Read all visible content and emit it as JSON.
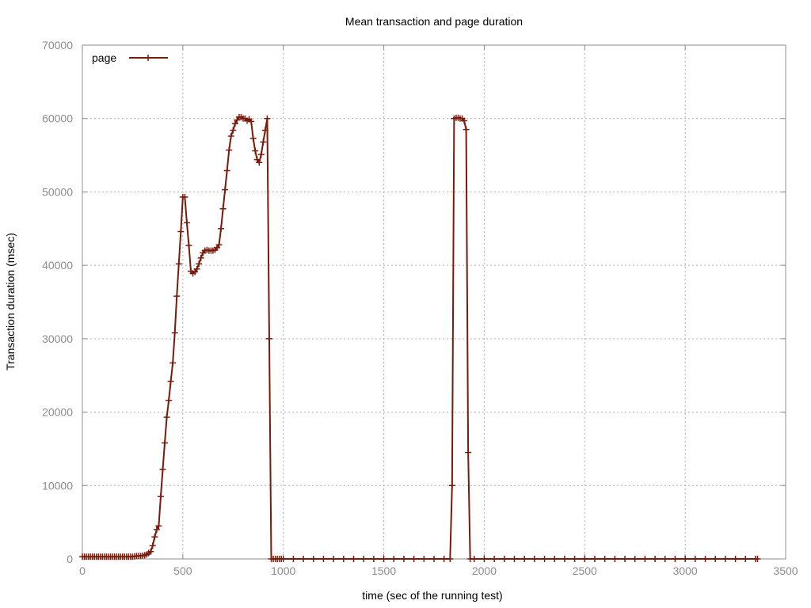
{
  "chart_data": {
    "type": "line",
    "title": "Mean transaction and page duration",
    "xlabel": "time (sec of the running test)",
    "ylabel": "Transaction duration (msec)",
    "xlim": [
      0,
      3500
    ],
    "ylim": [
      0,
      70000
    ],
    "xticks": [
      0,
      500,
      1000,
      1500,
      2000,
      2500,
      3000,
      3500
    ],
    "yticks": [
      0,
      10000,
      20000,
      30000,
      40000,
      50000,
      60000,
      70000
    ],
    "grid": true,
    "legend_position": "top-left",
    "series": [
      {
        "name": "page",
        "color": "#7a1a0a",
        "marker": "plus",
        "points": [
          [
            0,
            300
          ],
          [
            10,
            300
          ],
          [
            20,
            300
          ],
          [
            30,
            300
          ],
          [
            40,
            300
          ],
          [
            50,
            300
          ],
          [
            60,
            300
          ],
          [
            70,
            300
          ],
          [
            80,
            300
          ],
          [
            90,
            300
          ],
          [
            100,
            300
          ],
          [
            110,
            300
          ],
          [
            120,
            300
          ],
          [
            130,
            300
          ],
          [
            140,
            300
          ],
          [
            150,
            300
          ],
          [
            160,
            300
          ],
          [
            170,
            300
          ],
          [
            180,
            300
          ],
          [
            190,
            300
          ],
          [
            200,
            300
          ],
          [
            210,
            300
          ],
          [
            220,
            300
          ],
          [
            230,
            300
          ],
          [
            240,
            300
          ],
          [
            250,
            300
          ],
          [
            260,
            350
          ],
          [
            270,
            400
          ],
          [
            280,
            400
          ],
          [
            290,
            400
          ],
          [
            300,
            450
          ],
          [
            310,
            500
          ],
          [
            320,
            600
          ],
          [
            330,
            800
          ],
          [
            340,
            1000
          ],
          [
            350,
            1800
          ],
          [
            360,
            3000
          ],
          [
            370,
            4000
          ],
          [
            380,
            4500
          ],
          [
            390,
            8500
          ],
          [
            400,
            12200
          ],
          [
            410,
            15800
          ],
          [
            420,
            19300
          ],
          [
            430,
            21600
          ],
          [
            440,
            24200
          ],
          [
            450,
            26700
          ],
          [
            460,
            30800
          ],
          [
            470,
            35800
          ],
          [
            480,
            40200
          ],
          [
            490,
            44600
          ],
          [
            500,
            49300
          ],
          [
            510,
            49300
          ],
          [
            520,
            45800
          ],
          [
            530,
            42700
          ],
          [
            540,
            39200
          ],
          [
            550,
            38900
          ],
          [
            560,
            39100
          ],
          [
            570,
            39500
          ],
          [
            580,
            40200
          ],
          [
            590,
            41000
          ],
          [
            600,
            41700
          ],
          [
            610,
            42000
          ],
          [
            620,
            42100
          ],
          [
            630,
            42000
          ],
          [
            640,
            42000
          ],
          [
            650,
            42000
          ],
          [
            660,
            42100
          ],
          [
            670,
            42400
          ],
          [
            680,
            42800
          ],
          [
            690,
            45000
          ],
          [
            700,
            47700
          ],
          [
            710,
            50300
          ],
          [
            720,
            52900
          ],
          [
            730,
            55700
          ],
          [
            740,
            57600
          ],
          [
            750,
            58400
          ],
          [
            760,
            59300
          ],
          [
            770,
            59800
          ],
          [
            780,
            60200
          ],
          [
            790,
            60200
          ],
          [
            800,
            60000
          ],
          [
            810,
            60000
          ],
          [
            820,
            59700
          ],
          [
            830,
            59900
          ],
          [
            840,
            59600
          ],
          [
            850,
            57300
          ],
          [
            860,
            55600
          ],
          [
            870,
            54400
          ],
          [
            880,
            54000
          ],
          [
            890,
            55100
          ],
          [
            900,
            56800
          ],
          [
            910,
            58400
          ],
          [
            920,
            60000
          ],
          [
            930,
            30000
          ],
          [
            940,
            0
          ],
          [
            950,
            0
          ],
          [
            960,
            0
          ],
          [
            970,
            0
          ],
          [
            980,
            0
          ],
          [
            990,
            0
          ],
          [
            1000,
            0
          ],
          [
            1050,
            0
          ],
          [
            1100,
            0
          ],
          [
            1150,
            0
          ],
          [
            1200,
            0
          ],
          [
            1250,
            0
          ],
          [
            1300,
            0
          ],
          [
            1350,
            0
          ],
          [
            1400,
            0
          ],
          [
            1450,
            0
          ],
          [
            1500,
            0
          ],
          [
            1550,
            0
          ],
          [
            1600,
            0
          ],
          [
            1650,
            0
          ],
          [
            1700,
            0
          ],
          [
            1750,
            0
          ],
          [
            1800,
            0
          ],
          [
            1830,
            0
          ],
          [
            1840,
            10000
          ],
          [
            1850,
            60000
          ],
          [
            1860,
            60100
          ],
          [
            1870,
            60100
          ],
          [
            1880,
            60000
          ],
          [
            1890,
            60000
          ],
          [
            1900,
            59700
          ],
          [
            1910,
            58500
          ],
          [
            1920,
            14500
          ],
          [
            1930,
            0
          ],
          [
            1950,
            0
          ],
          [
            2000,
            0
          ],
          [
            2050,
            0
          ],
          [
            2100,
            0
          ],
          [
            2150,
            0
          ],
          [
            2200,
            0
          ],
          [
            2250,
            0
          ],
          [
            2300,
            0
          ],
          [
            2350,
            0
          ],
          [
            2400,
            0
          ],
          [
            2450,
            0
          ],
          [
            2500,
            0
          ],
          [
            2550,
            0
          ],
          [
            2600,
            0
          ],
          [
            2650,
            0
          ],
          [
            2700,
            0
          ],
          [
            2750,
            0
          ],
          [
            2800,
            0
          ],
          [
            2850,
            0
          ],
          [
            2900,
            0
          ],
          [
            2950,
            0
          ],
          [
            3000,
            0
          ],
          [
            3050,
            0
          ],
          [
            3100,
            0
          ],
          [
            3150,
            0
          ],
          [
            3200,
            0
          ],
          [
            3250,
            0
          ],
          [
            3300,
            0
          ],
          [
            3350,
            0
          ],
          [
            3360,
            0
          ]
        ]
      }
    ]
  }
}
